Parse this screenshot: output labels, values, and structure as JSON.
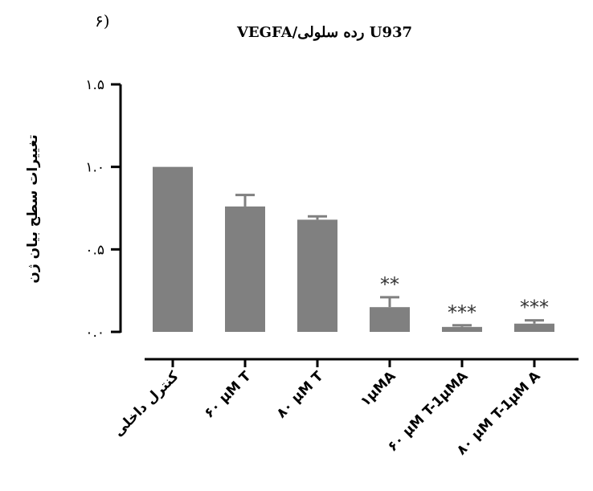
{
  "panel_label": "۶)",
  "chart_data": {
    "type": "bar",
    "title": "VEGFA/رده سلولی U937",
    "ylabel": "تغییرات سطح بیان ژن",
    "xlabel": "",
    "ylim": [
      0,
      1.5
    ],
    "yticks": [
      0,
      0.5,
      1.0,
      1.5
    ],
    "ytick_labels": [
      "۰.۰",
      "۰.۵",
      "۱.۰",
      "۱.۵"
    ],
    "categories": [
      "کنترل داخلی",
      "۶۰ µM T",
      "۸۰ µM T",
      "۱µMA",
      "۶۰ µM T-1µMA",
      "۸۰ µM T-1µM A"
    ],
    "values": [
      1.0,
      0.76,
      0.68,
      0.15,
      0.03,
      0.05
    ],
    "errors": [
      0.0,
      0.07,
      0.02,
      0.06,
      0.01,
      0.02
    ],
    "significance": [
      "",
      "",
      "",
      "**",
      "***",
      "***"
    ],
    "grid": false,
    "bar_color": "#808080"
  }
}
